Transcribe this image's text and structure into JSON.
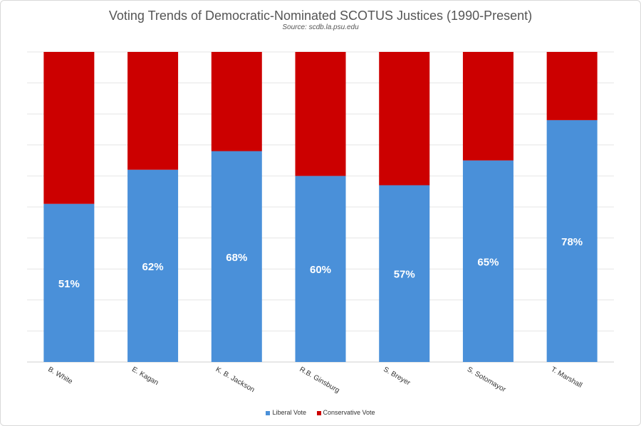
{
  "colors": {
    "liberal": "#4a90d9",
    "conservative": "#cc0000",
    "grid": "#e6e6e6"
  },
  "chart_data": {
    "type": "bar",
    "stacked": true,
    "title": "Voting Trends of Democratic-Nominated SCOTUS Justices (1990-Present)",
    "subtitle": "Source: scdb.la.psu.edu",
    "categories": [
      "B. White",
      "E. Kagan",
      "K. B. Jackson",
      "R.B. Ginsburg",
      "S. Breyer",
      "S. Sotomayor",
      "T. Marshall"
    ],
    "series": [
      {
        "name": "Liberal Vote",
        "values": [
          51,
          62,
          68,
          60,
          57,
          65,
          78
        ],
        "labels": [
          "51%",
          "62%",
          "68%",
          "60%",
          "57%",
          "65%",
          "78%"
        ]
      },
      {
        "name": "Conservative Vote",
        "values": [
          49,
          38,
          32,
          40,
          43,
          35,
          22
        ]
      }
    ],
    "ylim": [
      0,
      100
    ],
    "grid": true,
    "legend": "bottom"
  }
}
